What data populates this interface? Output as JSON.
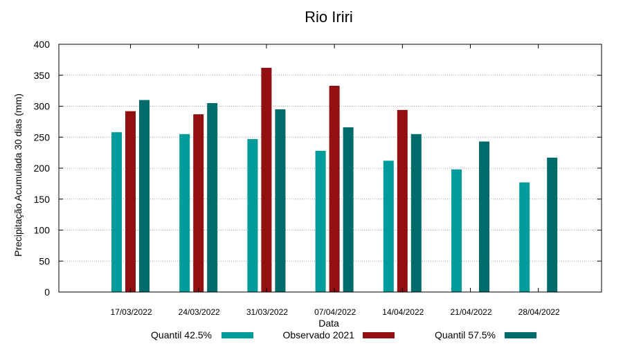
{
  "chart_data": {
    "type": "bar",
    "title": "Rio Iriri",
    "xlabel": "Data",
    "ylabel": "Precipitação Acumulada 30 dias (mm)",
    "ylim": [
      0,
      400
    ],
    "yticks": [
      0,
      50,
      100,
      150,
      200,
      250,
      300,
      350,
      400
    ],
    "grid": true,
    "legend_position": "bottom",
    "categories": [
      "17/03/2022",
      "24/03/2022",
      "31/03/2022",
      "07/04/2022",
      "14/04/2022",
      "21/04/2022",
      "28/04/2022"
    ],
    "series": [
      {
        "name": "Quantil 42.5%",
        "color": "#009b9b",
        "values": [
          258,
          255,
          247,
          228,
          212,
          198,
          177
        ]
      },
      {
        "name": "Observado 2021",
        "color": "#931010",
        "values": [
          292,
          287,
          362,
          333,
          294,
          null,
          null
        ]
      },
      {
        "name": "Quantil 57.5%",
        "color": "#006b6b",
        "values": [
          310,
          305,
          295,
          266,
          255,
          243,
          217
        ]
      }
    ]
  }
}
